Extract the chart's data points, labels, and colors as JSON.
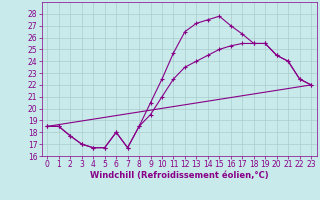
{
  "title": "",
  "xlabel": "Windchill (Refroidissement éolien,°C)",
  "background_color": "#c8eaea",
  "line_color": "#880088",
  "grid_color": "#aacccc",
  "ylim": [
    16,
    29
  ],
  "xlim": [
    -0.5,
    23.5
  ],
  "yticks": [
    16,
    17,
    18,
    19,
    20,
    21,
    22,
    23,
    24,
    25,
    26,
    27,
    28
  ],
  "xticks": [
    0,
    1,
    2,
    3,
    4,
    5,
    6,
    7,
    8,
    9,
    10,
    11,
    12,
    13,
    14,
    15,
    16,
    17,
    18,
    19,
    20,
    21,
    22,
    23
  ],
  "series1_x": [
    0,
    1,
    2,
    3,
    4,
    5,
    6,
    7,
    8,
    9,
    10,
    11,
    12,
    13,
    14,
    15,
    16,
    17,
    18,
    19,
    20,
    21,
    22,
    23
  ],
  "series1_y": [
    18.5,
    18.5,
    17.7,
    17.0,
    16.7,
    16.7,
    18.0,
    16.7,
    18.5,
    20.5,
    22.5,
    24.7,
    26.5,
    27.2,
    27.5,
    27.8,
    27.0,
    26.3,
    25.5,
    25.5,
    24.5,
    24.0,
    22.5,
    22.0
  ],
  "series2_x": [
    0,
    1,
    2,
    3,
    4,
    5,
    6,
    7,
    8,
    9,
    10,
    11,
    12,
    13,
    14,
    15,
    16,
    17,
    18,
    19,
    20,
    21,
    22,
    23
  ],
  "series2_y": [
    18.5,
    18.5,
    17.7,
    17.0,
    16.7,
    16.7,
    18.0,
    16.7,
    18.5,
    19.5,
    21.0,
    22.5,
    23.5,
    24.0,
    24.5,
    25.0,
    25.3,
    25.5,
    25.5,
    25.5,
    24.5,
    24.0,
    22.5,
    22.0
  ],
  "series3_x": [
    0,
    23
  ],
  "series3_y": [
    18.5,
    22.0
  ],
  "tick_fontsize": 5.5,
  "xlabel_fontsize": 6,
  "linewidth": 0.8,
  "markersize": 3
}
